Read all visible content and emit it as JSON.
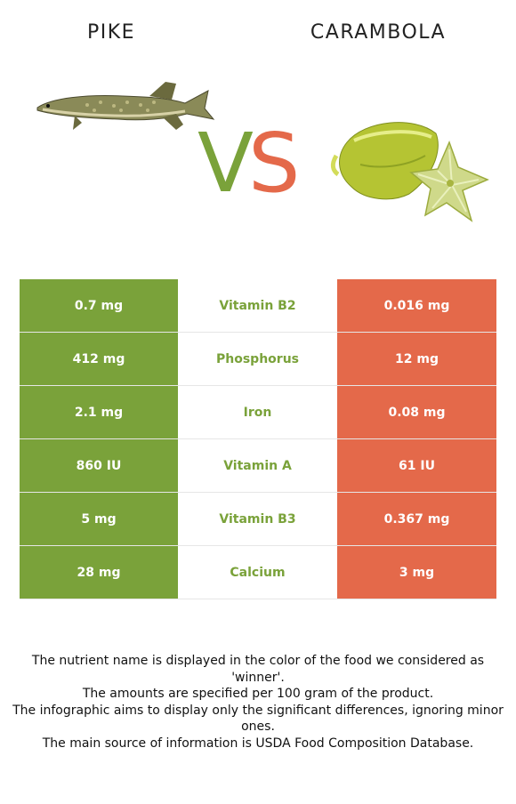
{
  "header": {
    "left_title": "PIKE",
    "right_title": "CARAMBOLA",
    "vs_v": "V",
    "vs_s": "S"
  },
  "colors": {
    "winner_left": "#7aa23a",
    "winner_right": "#e4694a"
  },
  "rows": [
    {
      "left": "0.7 mg",
      "nutrient": "Vitamin B2",
      "right": "0.016 mg"
    },
    {
      "left": "412 mg",
      "nutrient": "Phosphorus",
      "right": "12 mg"
    },
    {
      "left": "2.1 mg",
      "nutrient": "Iron",
      "right": "0.08 mg"
    },
    {
      "left": "860 IU",
      "nutrient": "Vitamin A",
      "right": "61 IU"
    },
    {
      "left": "5 mg",
      "nutrient": "Vitamin B3",
      "right": "0.367 mg"
    },
    {
      "left": "28 mg",
      "nutrient": "Calcium",
      "right": "3 mg"
    }
  ],
  "notes": [
    "The nutrient name is displayed in the color of the food we considered as 'winner'.",
    "The amounts are specified per 100 gram of the product.",
    "The infographic aims to display only the significant differences, ignoring minor ones.",
    "The main source of information is USDA Food Composition Database."
  ]
}
